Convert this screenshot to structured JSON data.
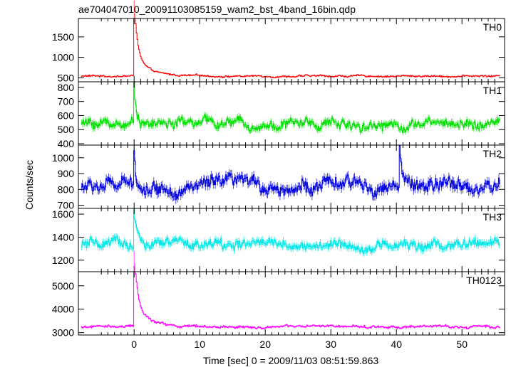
{
  "chart_data": {
    "type": "line",
    "title": "ae704047010_20091103085159_wam2_bst_4band_16bin.qdp",
    "xlabel": "Time [sec] 0 = 2009/11/03 08:51:59.863",
    "ylabel": "Counts/sec",
    "xlim": [
      -8.5,
      56.5
    ],
    "x_ticks": [
      0,
      10,
      20,
      30,
      40,
      50
    ],
    "x_tick_labels": [
      "0",
      "10",
      "20",
      "30",
      "40",
      "50"
    ],
    "grid": false,
    "panels": [
      {
        "name": "TH0",
        "color": "#ff0000",
        "ylim": [
          400,
          1950
        ],
        "y_ticks": [
          500,
          1000,
          1500
        ],
        "y_tick_labels": [
          "500",
          "1000",
          "1500"
        ],
        "baseline": 540,
        "noise": 28,
        "yerr": 30,
        "burst": [
          {
            "t": 0.0,
            "peak": 1920,
            "decay": 0.5,
            "extra": 500,
            "extra_decay": 2.0
          }
        ]
      },
      {
        "name": "TH1",
        "color": "#00e000",
        "ylim": [
          390,
          840
        ],
        "y_ticks": [
          400,
          500,
          600,
          700,
          800
        ],
        "y_tick_labels": [
          "400",
          "500",
          "600",
          "700",
          "800"
        ],
        "baseline": 545,
        "noise": 45,
        "yerr": 40,
        "burst": [
          {
            "t": 0.0,
            "peak": 820,
            "decay": 0.4,
            "extra": 0,
            "extra_decay": 1
          }
        ]
      },
      {
        "name": "TH2",
        "color": "#0000e0",
        "ylim": [
          680,
          1080
        ],
        "y_ticks": [
          700,
          800,
          900,
          1000
        ],
        "y_tick_labels": [
          "700",
          "800",
          "900",
          "1000"
        ],
        "baseline": 820,
        "noise": 55,
        "yerr": 50,
        "burst": [
          {
            "t": 0.0,
            "peak": 1070,
            "decay": 0.3,
            "extra": 0,
            "extra_decay": 1
          },
          {
            "t": 40.5,
            "peak": 1040,
            "decay": 0.3,
            "extra": 0,
            "extra_decay": 1
          }
        ]
      },
      {
        "name": "TH3",
        "color": "#00e8e8",
        "ylim": [
          1100,
          1650
        ],
        "y_ticks": [
          1200,
          1400,
          1600
        ],
        "y_tick_labels": [
          "1200",
          "1400",
          "1600"
        ],
        "baseline": 1330,
        "noise": 55,
        "yerr": 55,
        "burst": [
          {
            "t": 0.0,
            "peak": 1640,
            "decay": 0.5,
            "extra": 0,
            "extra_decay": 1
          }
        ]
      },
      {
        "name": "TH0123",
        "color": "#ff00ff",
        "ylim": [
          2900,
          5600
        ],
        "y_ticks": [
          3000,
          4000,
          5000
        ],
        "y_tick_labels": [
          "3000",
          "4000",
          "5000"
        ],
        "baseline": 3250,
        "noise": 70,
        "yerr": 70,
        "burst": [
          {
            "t": 0.0,
            "peak": 5500,
            "decay": 0.5,
            "extra": 1000,
            "extra_decay": 2.0
          }
        ]
      }
    ],
    "x_start": -8.0,
    "x_end": 55.75,
    "bin_width": 0.125
  }
}
